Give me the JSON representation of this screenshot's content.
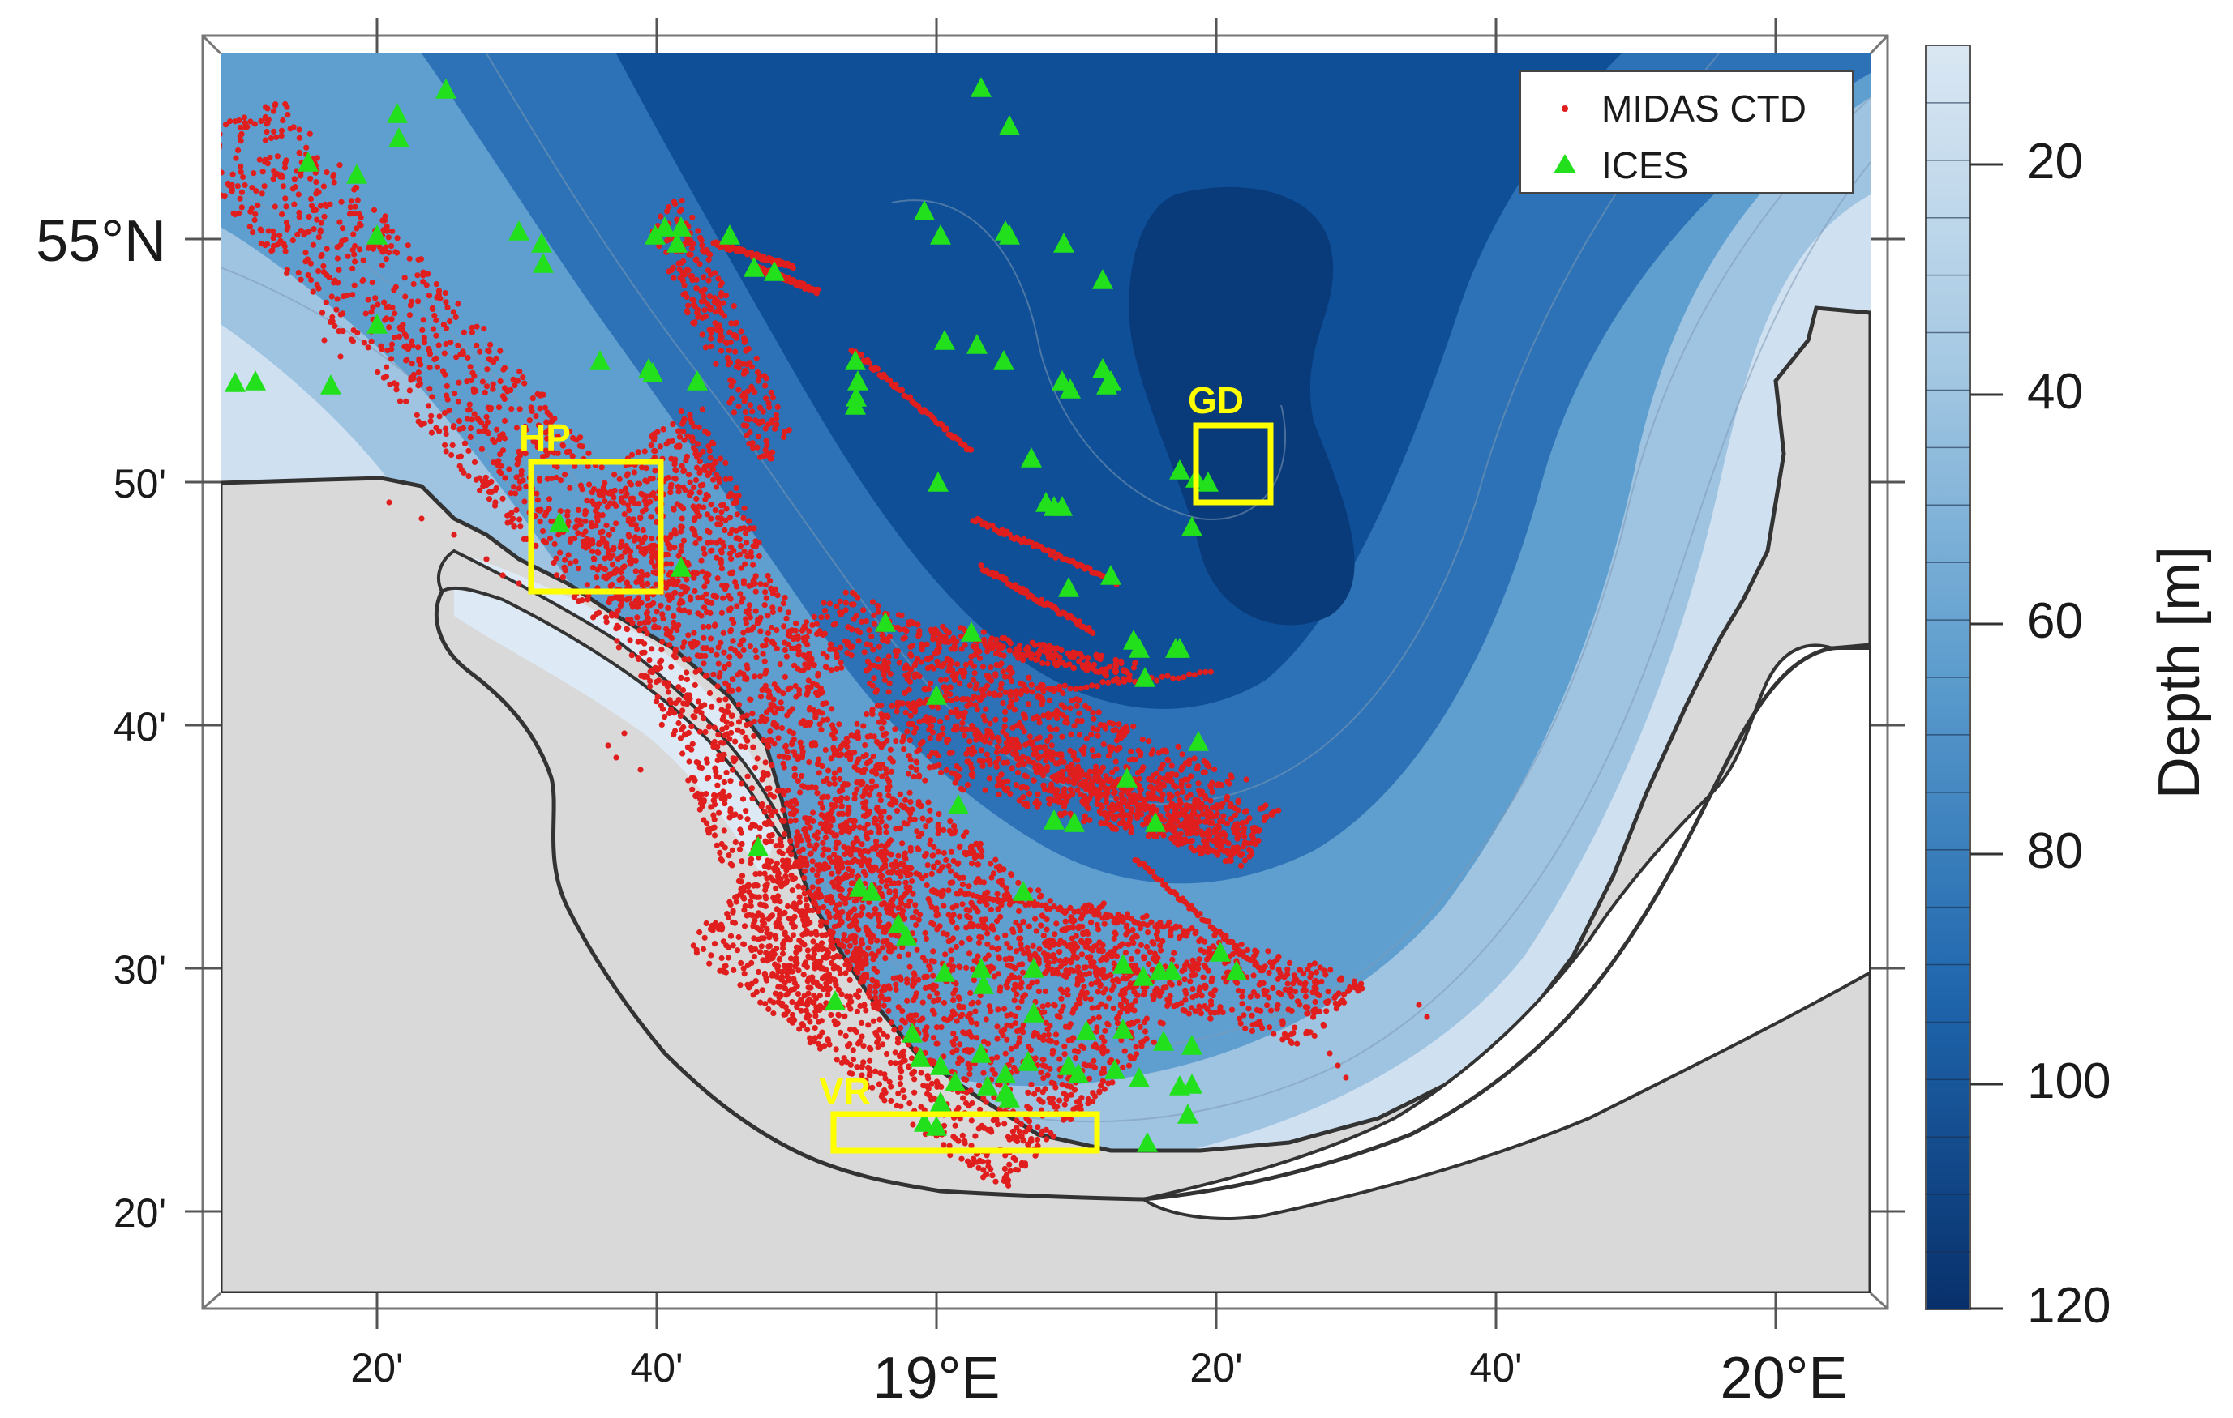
{
  "legend": {
    "ctd_label": "MIDAS CTD",
    "ices_label": "ICES",
    "ctd_color": "#e01e1e",
    "ices_color": "#22e11c"
  },
  "regions": {
    "hp": "HP",
    "gd": "GD",
    "vr": "VR",
    "color": "#ffff00"
  },
  "axes": {
    "x_ticks": [
      "20'",
      "40'",
      "19°E",
      "20'",
      "40'",
      "20°E"
    ],
    "y_ticks": [
      "55°N",
      "50'",
      "40'",
      "30'",
      "20'"
    ]
  },
  "colorbar": {
    "title": "Depth [m]",
    "ticks": [
      "20",
      "40",
      "60",
      "80",
      "100",
      "120"
    ],
    "range": [
      10,
      120
    ],
    "shallow_color": "#dae7f3",
    "deep_color": "#08306b"
  },
  "colors": {
    "land": "#d9d9d9",
    "shallow_water": "#dde9f5",
    "deep_water": "#0b3d84"
  }
}
